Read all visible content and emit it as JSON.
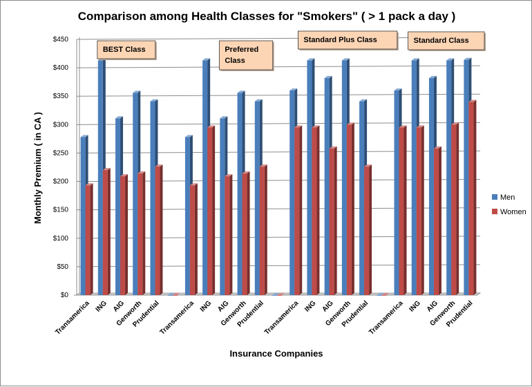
{
  "chart_data": {
    "type": "bar",
    "title": "Comparison among Health Classes for \"Smokers\" ( > 1 pack a day )",
    "xlabel": "Insurance Companies",
    "ylabel": "Monthly Premium ( in CA )",
    "ylim": [
      0,
      450
    ],
    "yticks": [
      0,
      50,
      100,
      150,
      200,
      250,
      300,
      350,
      400,
      450
    ],
    "ytick_labels": [
      "$0",
      "$50",
      "$100",
      "$150",
      "$200",
      "$250",
      "$300",
      "$350",
      "$400",
      "$450"
    ],
    "grid": true,
    "legend_position": "right",
    "categories": [
      "Transamerica",
      "ING",
      "AIG",
      "Genworth",
      "Prudential",
      "",
      "Transamerica",
      "ING",
      "AIG",
      "Genworth",
      "Prudential",
      "",
      "Transamerica",
      "ING",
      "AIG",
      "Genworth",
      "Prudential",
      "",
      "Transamerica",
      "ING",
      "AIG",
      "Genworth",
      "Prudential"
    ],
    "series": [
      {
        "name": "Men",
        "color": "#4a7ebb",
        "values": [
          278,
          413,
          311,
          356,
          341,
          0,
          278,
          413,
          311,
          356,
          341,
          0,
          360,
          413,
          382,
          413,
          341,
          0,
          360,
          413,
          382,
          413,
          414
        ]
      },
      {
        "name": "Women",
        "color": "#be4b48",
        "values": [
          193,
          220,
          209,
          214,
          226,
          0,
          193,
          295,
          209,
          214,
          226,
          0,
          295,
          295,
          258,
          300,
          226,
          0,
          295,
          295,
          258,
          300,
          340
        ]
      }
    ],
    "annotations": [
      {
        "text": "BEST Class",
        "lines": [
          "BEST Class"
        ],
        "anchor_category": 1
      },
      {
        "text": "Preferred Class",
        "lines": [
          "Preferred",
          "Class"
        ],
        "anchor_category": 8
      },
      {
        "text": "Standard Plus Class",
        "lines": [
          "Standard Plus Class"
        ],
        "anchor_category": 13
      },
      {
        "text": "Standard Class",
        "lines": [
          "Standard Class"
        ],
        "anchor_category": 20
      }
    ]
  }
}
